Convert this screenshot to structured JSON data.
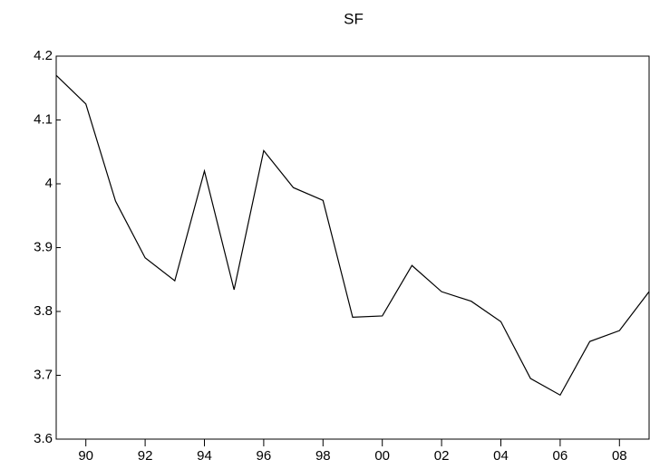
{
  "chart_data": {
    "type": "line",
    "title": "SF",
    "x": [
      1989,
      1990,
      1991,
      1992,
      1993,
      1994,
      1995,
      1996,
      1997,
      1998,
      1999,
      2000,
      2001,
      2002,
      2003,
      2004,
      2005,
      2006,
      2007,
      2008,
      2009
    ],
    "values": [
      4.17,
      4.125,
      3.973,
      3.884,
      3.848,
      4.02,
      3.834,
      4.052,
      3.994,
      3.974,
      3.791,
      3.793,
      3.872,
      3.831,
      3.816,
      3.784,
      3.695,
      3.669,
      3.753,
      3.77,
      3.831
    ],
    "color": "#000000",
    "xlim": [
      1989,
      2009
    ],
    "xticks": [
      {
        "value": 1990,
        "label": "90"
      },
      {
        "value": 1992,
        "label": "92"
      },
      {
        "value": 1994,
        "label": "94"
      },
      {
        "value": 1996,
        "label": "96"
      },
      {
        "value": 1998,
        "label": "98"
      },
      {
        "value": 2000,
        "label": "00"
      },
      {
        "value": 2002,
        "label": "02"
      },
      {
        "value": 2004,
        "label": "04"
      },
      {
        "value": 2006,
        "label": "06"
      },
      {
        "value": 2008,
        "label": "08"
      }
    ],
    "ylim": [
      3.6,
      4.2
    ],
    "yticks": [
      3.6,
      3.7,
      3.8,
      3.9,
      4.0,
      4.1,
      4.2
    ],
    "grid": false
  }
}
